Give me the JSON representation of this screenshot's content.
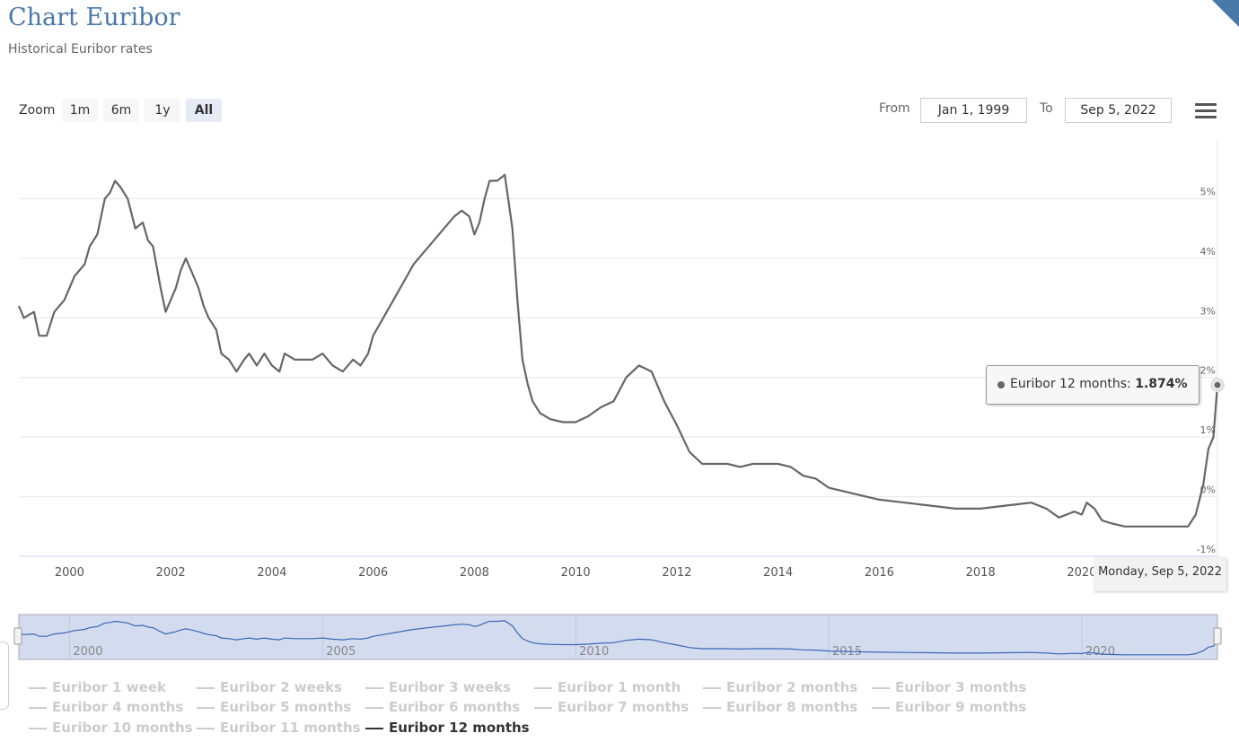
{
  "page": {
    "title": "Chart Euribor",
    "subtitle": "Historical Euribor rates"
  },
  "zoom": {
    "label": "Zoom",
    "buttons": [
      "1m",
      "6m",
      "1y",
      "All"
    ],
    "active": "All"
  },
  "range": {
    "from_label": "From",
    "from_value": "Jan 1, 1999",
    "to_label": "To",
    "to_value": "Sep 5, 2022"
  },
  "tooltip": {
    "series": "Euribor 12 months",
    "value": "1.874%"
  },
  "crosshair_label": "Monday, Sep 5, 2022",
  "legend": {
    "items": [
      "Euribor 1 week",
      "Euribor 2 weeks",
      "Euribor 3 weeks",
      "Euribor 1 month",
      "Euribor 2 months",
      "Euribor 3 months",
      "Euribor 4 months",
      "Euribor 5 months",
      "Euribor 6 months",
      "Euribor 7 months",
      "Euribor 8 months",
      "Euribor 9 months",
      "Euribor 10 months",
      "Euribor 11 months",
      "Euribor 12 months"
    ],
    "active": "Euribor 12 months"
  },
  "colors": {
    "title": "#4a78a8",
    "line": "#666666",
    "navigator_line": "#3a66b8",
    "navigator_fill": "#d3dcee"
  },
  "chart_data": {
    "type": "line",
    "title": "Chart Euribor",
    "subtitle": "Historical Euribor rates",
    "xlim": [
      1999.0,
      2022.68
    ],
    "ylim": [
      -1,
      6
    ],
    "y_ticks": [
      "-1%",
      "0%",
      "1%",
      "2%",
      "3%",
      "4%",
      "5%"
    ],
    "x_ticks": [
      "2000",
      "2002",
      "2004",
      "2006",
      "2008",
      "2010",
      "2012",
      "2014",
      "2016",
      "2018",
      "2020"
    ],
    "navigator_ticks": [
      "2000",
      "2005",
      "2010",
      "2015",
      "2020"
    ],
    "grid": true,
    "y_axis_side": "right",
    "series": [
      {
        "name": "Euribor 12 months",
        "x": [
          1999.0,
          1999.1,
          1999.3,
          1999.4,
          1999.55,
          1999.7,
          1999.9,
          2000.1,
          2000.3,
          2000.4,
          2000.55,
          2000.7,
          2000.8,
          2000.9,
          2001.0,
          2001.15,
          2001.3,
          2001.45,
          2001.55,
          2001.65,
          2001.8,
          2001.9,
          2001.95,
          2002.1,
          2002.2,
          2002.3,
          2002.4,
          2002.55,
          2002.65,
          2002.75,
          2002.9,
          2003.0,
          2003.15,
          2003.3,
          2003.45,
          2003.55,
          2003.7,
          2003.85,
          2004.0,
          2004.15,
          2004.25,
          2004.45,
          2004.6,
          2004.8,
          2005.0,
          2005.2,
          2005.4,
          2005.6,
          2005.75,
          2005.9,
          2006.0,
          2006.2,
          2006.4,
          2006.6,
          2006.8,
          2007.0,
          2007.2,
          2007.4,
          2007.6,
          2007.75,
          2007.9,
          2008.0,
          2008.1,
          2008.2,
          2008.3,
          2008.45,
          2008.6,
          2008.75,
          2008.85,
          2008.95,
          2009.05,
          2009.15,
          2009.3,
          2009.5,
          2009.75,
          2010.0,
          2010.25,
          2010.5,
          2010.75,
          2011.0,
          2011.25,
          2011.5,
          2011.75,
          2012.0,
          2012.25,
          2012.5,
          2012.75,
          2013.0,
          2013.25,
          2013.5,
          2013.75,
          2014.0,
          2014.25,
          2014.5,
          2014.75,
          2015.0,
          2015.5,
          2016.0,
          2016.5,
          2017.0,
          2017.5,
          2018.0,
          2018.5,
          2019.0,
          2019.3,
          2019.55,
          2019.7,
          2019.85,
          2020.0,
          2020.1,
          2020.25,
          2020.4,
          2020.6,
          2020.85,
          2021.0,
          2021.5,
          2022.0,
          2022.1,
          2022.25,
          2022.4,
          2022.5,
          2022.6,
          2022.68
        ],
        "y": [
          3.2,
          3.0,
          3.1,
          2.7,
          2.7,
          3.1,
          3.3,
          3.7,
          3.9,
          4.2,
          4.4,
          5.0,
          5.1,
          5.3,
          5.2,
          5.0,
          4.5,
          4.6,
          4.3,
          4.2,
          3.5,
          3.1,
          3.2,
          3.5,
          3.8,
          4.0,
          3.8,
          3.5,
          3.2,
          3.0,
          2.8,
          2.4,
          2.3,
          2.1,
          2.3,
          2.4,
          2.2,
          2.4,
          2.2,
          2.1,
          2.4,
          2.3,
          2.3,
          2.3,
          2.4,
          2.2,
          2.1,
          2.3,
          2.2,
          2.4,
          2.7,
          3.0,
          3.3,
          3.6,
          3.9,
          4.1,
          4.3,
          4.5,
          4.7,
          4.8,
          4.7,
          4.4,
          4.6,
          5.0,
          5.3,
          5.3,
          5.4,
          4.5,
          3.3,
          2.3,
          1.9,
          1.6,
          1.4,
          1.3,
          1.25,
          1.25,
          1.35,
          1.5,
          1.6,
          2.0,
          2.2,
          2.1,
          1.6,
          1.2,
          0.75,
          0.55,
          0.55,
          0.55,
          0.5,
          0.55,
          0.55,
          0.55,
          0.5,
          0.35,
          0.3,
          0.15,
          0.05,
          -0.05,
          -0.1,
          -0.15,
          -0.2,
          -0.2,
          -0.15,
          -0.1,
          -0.2,
          -0.35,
          -0.3,
          -0.25,
          -0.3,
          -0.1,
          -0.2,
          -0.4,
          -0.45,
          -0.5,
          -0.5,
          -0.5,
          -0.5,
          -0.5,
          -0.3,
          0.2,
          0.8,
          1.0,
          1.874
        ]
      }
    ]
  }
}
